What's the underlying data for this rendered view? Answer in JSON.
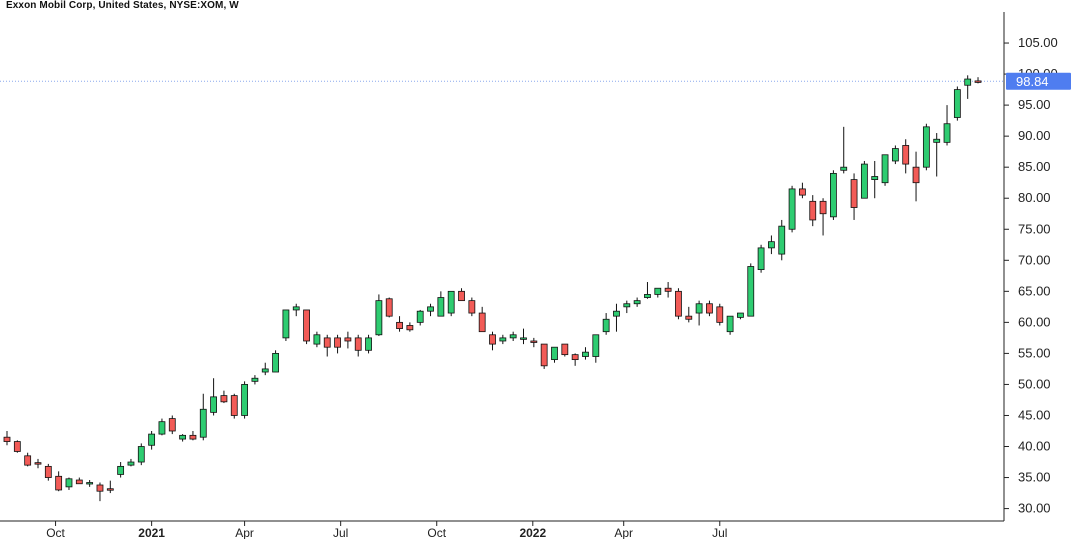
{
  "chart_data": {
    "type": "candlestick",
    "title": "Exxon Mobil Corp, United States, NYSE:XOM, W",
    "interval": "weekly",
    "last_price_label": "98.84",
    "colors": {
      "up": "#2ecc71",
      "down": "#f25b57",
      "outline": "#111111",
      "price_tag": "#4f7df0",
      "price_line": "#8aa8ee"
    },
    "ylim": [
      28,
      110
    ],
    "y_ticks": [
      "30.00",
      "35.00",
      "40.00",
      "45.00",
      "50.00",
      "55.00",
      "60.00",
      "65.00",
      "70.00",
      "75.00",
      "80.00",
      "85.00",
      "90.00",
      "95.00",
      "100.00",
      "105.00"
    ],
    "x_ticks": [
      {
        "label": "Oct",
        "index": 4.7,
        "bold": false
      },
      {
        "label": "2021",
        "index": 14.0,
        "bold": true
      },
      {
        "label": "Apr",
        "index": 23.0,
        "bold": false
      },
      {
        "label": "Jul",
        "index": 32.3,
        "bold": false
      },
      {
        "label": "Oct",
        "index": 41.6,
        "bold": false
      },
      {
        "label": "2022",
        "index": 50.9,
        "bold": true
      },
      {
        "label": "Apr",
        "index": 59.7,
        "bold": false
      },
      {
        "label": "Jul",
        "index": 69.0,
        "bold": false
      }
    ],
    "ohlc": [
      [
        41.5,
        42.5,
        40.2,
        40.8
      ],
      [
        40.8,
        41.0,
        39.0,
        39.2
      ],
      [
        38.5,
        39.0,
        36.8,
        37.0
      ],
      [
        37.4,
        38.0,
        36.5,
        37.2
      ],
      [
        36.8,
        37.2,
        34.5,
        35.0
      ],
      [
        35.2,
        36.0,
        32.8,
        33.0
      ],
      [
        33.5,
        35.0,
        33.0,
        34.8
      ],
      [
        34.6,
        35.0,
        34.0,
        34.0
      ],
      [
        34.0,
        34.6,
        33.5,
        34.2
      ],
      [
        33.8,
        34.2,
        31.2,
        32.8
      ],
      [
        33.2,
        34.5,
        32.5,
        33.0
      ],
      [
        35.5,
        37.5,
        35.0,
        36.8
      ],
      [
        37.0,
        38.0,
        36.8,
        37.5
      ],
      [
        37.5,
        40.5,
        37.0,
        40.0
      ],
      [
        40.2,
        42.5,
        39.5,
        42.0
      ],
      [
        42.0,
        44.5,
        41.8,
        44.0
      ],
      [
        44.5,
        45.0,
        42.0,
        42.5
      ],
      [
        41.2,
        42.0,
        40.8,
        41.8
      ],
      [
        41.8,
        42.5,
        41.0,
        41.2
      ],
      [
        41.5,
        48.5,
        41.0,
        46.0
      ],
      [
        45.5,
        51.0,
        45.0,
        48.0
      ],
      [
        48.2,
        49.0,
        47.0,
        47.2
      ],
      [
        48.2,
        48.5,
        44.5,
        45.0
      ],
      [
        45.0,
        50.5,
        44.5,
        50.0
      ],
      [
        50.5,
        51.5,
        50.0,
        51.0
      ],
      [
        52.0,
        53.5,
        51.5,
        52.5
      ],
      [
        52.0,
        55.5,
        52.0,
        55.0
      ],
      [
        57.5,
        62.0,
        57.0,
        62.0
      ],
      [
        62.0,
        63.0,
        61.0,
        62.5
      ],
      [
        62.0,
        62.0,
        56.5,
        57.0
      ],
      [
        56.5,
        58.5,
        56.0,
        58.0
      ],
      [
        57.5,
        58.0,
        54.5,
        56.0
      ],
      [
        57.5,
        58.0,
        55.0,
        56.0
      ],
      [
        57.5,
        58.5,
        55.8,
        57.0
      ],
      [
        57.5,
        58.0,
        54.5,
        55.5
      ],
      [
        55.5,
        58.0,
        55.0,
        57.5
      ],
      [
        58.0,
        64.5,
        57.8,
        63.5
      ],
      [
        63.8,
        64.0,
        60.8,
        61.0
      ],
      [
        60.0,
        61.0,
        58.5,
        59.0
      ],
      [
        59.5,
        60.0,
        58.5,
        58.8
      ],
      [
        60.0,
        62.0,
        59.5,
        61.8
      ],
      [
        61.8,
        63.0,
        61.0,
        62.5
      ],
      [
        61.0,
        65.0,
        61.0,
        64.0
      ],
      [
        61.5,
        65.0,
        61.0,
        65.0
      ],
      [
        65.0,
        65.5,
        63.5,
        63.5
      ],
      [
        63.5,
        64.0,
        61.0,
        61.5
      ],
      [
        61.5,
        62.5,
        58.5,
        58.5
      ],
      [
        58.0,
        58.5,
        55.5,
        56.5
      ],
      [
        57.0,
        58.0,
        56.5,
        57.5
      ],
      [
        57.5,
        58.5,
        57.0,
        58.0
      ],
      [
        57.5,
        59.0,
        56.5,
        57.5
      ],
      [
        57.0,
        57.5,
        56.0,
        56.8
      ],
      [
        56.5,
        56.5,
        52.5,
        53.0
      ],
      [
        54.0,
        55.5,
        53.5,
        56.0
      ],
      [
        56.5,
        56.5,
        54.5,
        54.8
      ],
      [
        54.8,
        55.0,
        53.0,
        54.0
      ],
      [
        54.5,
        56.0,
        54.0,
        55.2
      ],
      [
        54.5,
        58.0,
        53.5,
        58.0
      ],
      [
        58.5,
        61.5,
        58.0,
        60.5
      ],
      [
        61.0,
        63.0,
        58.5,
        61.8
      ],
      [
        62.5,
        63.5,
        61.5,
        63.0
      ],
      [
        63.0,
        64.0,
        62.5,
        63.5
      ],
      [
        64.0,
        66.5,
        63.8,
        64.5
      ],
      [
        64.5,
        65.5,
        64.0,
        65.5
      ],
      [
        65.5,
        66.5,
        64.0,
        65.0
      ],
      [
        65.0,
        65.5,
        60.5,
        61.0
      ],
      [
        61.0,
        62.5,
        60.0,
        60.5
      ],
      [
        61.5,
        63.5,
        59.5,
        63.0
      ],
      [
        63.0,
        63.5,
        61.0,
        61.5
      ],
      [
        62.5,
        63.0,
        59.5,
        60.0
      ],
      [
        58.5,
        61.0,
        58.0,
        61.0
      ],
      [
        60.8,
        61.5,
        60.5,
        61.5
      ],
      [
        61.0,
        69.5,
        61.0,
        69.0
      ],
      [
        68.5,
        72.5,
        68.0,
        72.0
      ],
      [
        72.0,
        74.0,
        71.0,
        73.0
      ],
      [
        71.0,
        76.5,
        70.0,
        75.5
      ],
      [
        75.0,
        82.0,
        74.5,
        81.5
      ],
      [
        81.5,
        82.5,
        80.0,
        80.5
      ],
      [
        79.5,
        80.5,
        75.5,
        76.5
      ],
      [
        79.5,
        80.0,
        74.0,
        77.5
      ],
      [
        77.0,
        84.5,
        76.5,
        84.0
      ],
      [
        84.5,
        91.5,
        84.0,
        85.0
      ],
      [
        83.0,
        84.0,
        76.5,
        78.5
      ],
      [
        80.0,
        86.0,
        80.0,
        85.5
      ],
      [
        83.0,
        86.0,
        80.0,
        83.5
      ],
      [
        82.5,
        87.0,
        82.0,
        87.0
      ],
      [
        86.0,
        88.5,
        85.5,
        88.0
      ],
      [
        88.5,
        89.5,
        84.0,
        85.5
      ],
      [
        85.0,
        87.5,
        79.5,
        82.5
      ],
      [
        85.0,
        92.0,
        84.5,
        91.5
      ],
      [
        89.0,
        90.5,
        83.5,
        89.5
      ],
      [
        89.0,
        95.0,
        88.5,
        92.0
      ],
      [
        93.0,
        98.0,
        92.5,
        97.5
      ],
      [
        98.2,
        99.8,
        96.0,
        99.2
      ],
      [
        98.9,
        99.5,
        98.5,
        98.84
      ]
    ]
  }
}
